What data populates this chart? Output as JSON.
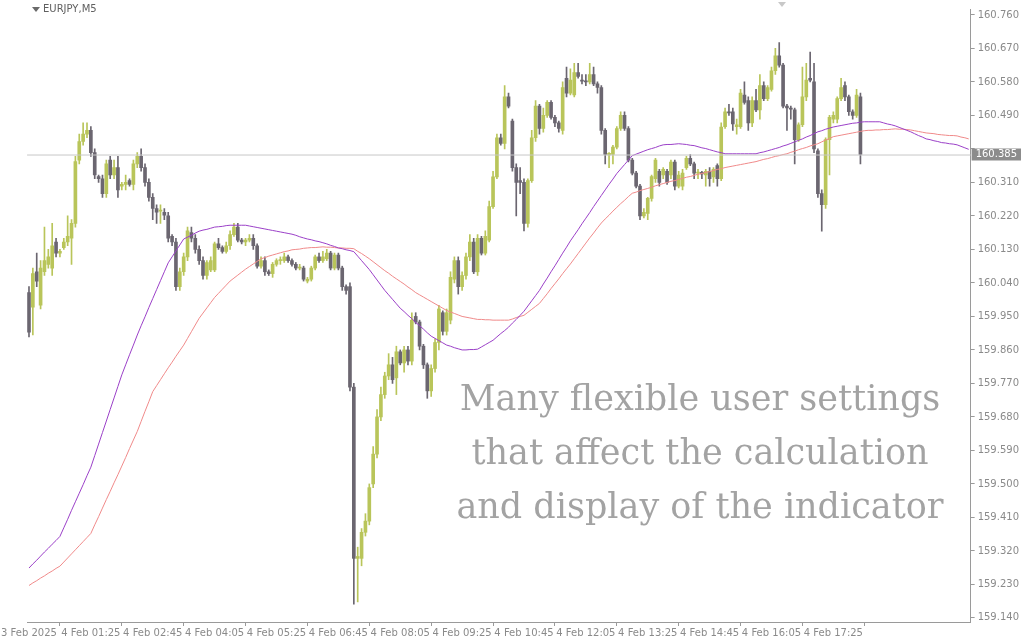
{
  "chart_data": {
    "type": "candlestick",
    "title": "EURJPY,M5",
    "annotations": [
      "Many flexible user settings that affect the calculation and display of the indicator"
    ],
    "categories": [
      "3 Feb 2025",
      null,
      null,
      null,
      null,
      null,
      null,
      null,
      null,
      null,
      null,
      null,
      null,
      null,
      null,
      null,
      "4 Feb 01:25",
      null,
      null,
      null,
      null,
      null,
      null,
      null,
      null,
      null,
      null,
      null,
      null,
      null,
      null,
      null,
      "4 Feb 02:45",
      null,
      null,
      null,
      null,
      null,
      null,
      null,
      null,
      null,
      null,
      null,
      null,
      null,
      null,
      null,
      "4 Feb 04:05",
      null,
      null,
      null,
      null,
      null,
      null,
      null,
      null,
      null,
      null,
      null,
      null,
      null,
      null,
      null,
      "4 Feb 05:25",
      null,
      null,
      null,
      null,
      null,
      null,
      null,
      null,
      null,
      null,
      null,
      null,
      null,
      null,
      null,
      "4 Feb 06:45",
      null,
      null,
      null,
      null,
      null,
      null,
      null,
      null,
      null,
      null,
      null,
      null,
      null,
      null,
      null,
      "4 Feb 08:05",
      null,
      null,
      null,
      null,
      null,
      null,
      null,
      null,
      null,
      null,
      null,
      null,
      null,
      null,
      null,
      "4 Feb 09:25",
      null,
      null,
      null,
      null,
      null,
      null,
      null,
      null,
      null,
      null,
      null,
      null,
      null,
      null,
      null,
      "4 Feb 10:45",
      null,
      null,
      null,
      null,
      null,
      null,
      null,
      null,
      null,
      null,
      null,
      null,
      null,
      null,
      null,
      "4 Feb 12:05",
      null,
      null,
      null,
      null,
      null,
      null,
      null,
      null,
      null,
      null,
      null,
      null,
      null,
      null,
      null,
      "4 Feb 13:25",
      null,
      null,
      null,
      null,
      null,
      null,
      null,
      null,
      null,
      null,
      null,
      null,
      null,
      null,
      null,
      "4 Feb 14:45",
      null,
      null,
      null,
      null,
      null,
      null,
      null,
      null,
      null,
      null,
      null,
      null,
      null,
      null,
      null,
      "4 Feb 16:05",
      null,
      null,
      null,
      null,
      null,
      null,
      null,
      null,
      null,
      null,
      null,
      null,
      null,
      null,
      null,
      "4 Feb 17:25",
      null,
      null,
      null,
      null,
      null,
      null,
      null,
      null,
      null,
      null,
      null,
      null,
      null,
      null,
      null,
      null,
      null,
      null,
      null,
      null,
      null,
      null,
      null,
      null,
      null,
      null,
      null,
      null,
      null,
      null,
      null,
      null,
      null,
      null,
      null
    ],
    "colors": [
      "#6b6670",
      "#b9c55a",
      "#6b6670",
      "#b9c55a",
      "#b9c55a",
      "#b9c55a",
      "#b9c55a",
      "#6b6670",
      "#b9c55a",
      "#b9c55a",
      "#b9c55a",
      "#b9c55a",
      "#b9c55a",
      "#b9c55a",
      "#b9c55a",
      "#b9c55a",
      "#6b6670",
      "#6b6670",
      "#6b6670",
      "#6b6670",
      "#b9c55a",
      "#6b6670",
      "#b9c55a",
      "#6b6670",
      "#b9c55a",
      "#b9c55a",
      "#6b6670",
      "#b9c55a",
      "#b9c55a",
      "#6b6670",
      "#6b6670",
      "#6b6670",
      "#6b6670",
      "#6b6670",
      "#b9c55a",
      "#6b6670",
      "#6b6670",
      "#6b6670",
      "#6b6670",
      "#b9c55a",
      "#b9c55a",
      "#b9c55a",
      "#6b6670",
      "#6b6670",
      "#6b6670",
      "#6b6670",
      "#b9c55a",
      "#b9c55a",
      "#b9c55a",
      "#6b6670",
      "#6b6670",
      "#b9c55a",
      "#b9c55a",
      "#b9c55a",
      "#6b6670",
      "#6b6670",
      "#b9c55a",
      "#b9c55a",
      "#6b6670",
      "#6b6670",
      "#b9c55a",
      "#6b6670",
      "#6b6670",
      "#b9c55a",
      "#b9c55a",
      "#b9c55a",
      "#b9c55a",
      "#6b6670",
      "#6b6670",
      "#6b6670",
      "#b9c55a",
      "#6b6670",
      "#b9c55a",
      "#b9c55a",
      "#b9c55a",
      "#6b6670",
      "#b9c55a",
      "#b9c55a",
      "#6b6670",
      "#b9c55a",
      "#6b6670",
      "#6b6670",
      "#6b6670",
      "#6b6670",
      "#6b6670",
      "#b9c55a",
      "#b9c55a",
      "#b9c55a",
      "#b9c55a",
      "#b9c55a",
      "#b9c55a",
      "#b9c55a",
      "#b9c55a",
      "#b9c55a",
      "#6b6670",
      "#b9c55a",
      "#6b6670",
      "#b9c55a",
      "#6b6670",
      "#b9c55a",
      "#6b6670",
      "#6b6670",
      "#6b6670",
      "#6b6670",
      "#b9c55a",
      "#b9c55a",
      "#b9c55a",
      "#6b6670",
      "#b9c55a",
      "#b9c55a",
      "#b9c55a",
      "#6b6670",
      "#b9c55a",
      "#b9c55a",
      "#b9c55a",
      "#6b6670",
      "#b9c55a",
      "#6b6670",
      "#b9c55a",
      "#b9c55a",
      "#b9c55a",
      "#b9c55a",
      "#6b6670",
      "#b9c55a",
      "#6b6670",
      "#6b6670",
      "#6b6670",
      "#6b6670",
      "#6b6670",
      "#b9c55a",
      "#b9c55a",
      "#b9c55a",
      "#6b6670",
      "#b9c55a",
      "#b9c55a",
      "#6b6670",
      "#6b6670",
      "#6b6670",
      "#b9c55a",
      "#6b6670",
      "#b9c55a",
      "#b9c55a",
      "#6b6670",
      "#6b6670",
      "#6b6670",
      "#b9c55a",
      "#6b6670",
      "#6b6670",
      "#6b6670",
      "#6b6670",
      "#b9c55a",
      "#b9c55a",
      "#b9c55a",
      "#b9c55a",
      "#6b6670",
      "#6b6670",
      "#6b6670",
      "#6b6670",
      "#6b6670",
      "#b9c55a",
      "#b9c55a",
      "#b9c55a",
      "#b9c55a",
      "#6b6670",
      "#b9c55a",
      "#6b6670",
      "#b9c55a",
      "#6b6670",
      "#b9c55a",
      "#b9c55a",
      "#b9c55a",
      "#6b6670",
      "#6b6670",
      "#b9c55a",
      "#6b6670",
      "#b9c55a",
      "#6b6670",
      "#b9c55a",
      "#6b6670",
      "#b9c55a",
      "#b9c55a",
      "#6b6670",
      "#6b6670",
      "#b9c55a",
      "#b9c55a",
      "#6b6670",
      "#6b6670",
      "#b9c55a",
      "#6b6670",
      "#b9c55a",
      "#6b6670",
      "#b9c55a",
      "#b9c55a",
      "#b9c55a",
      "#6b6670",
      "#6b6670",
      "#6b6670",
      "#6b6670",
      "#6b6670",
      "#b9c55a",
      "#b9c55a",
      "#b9c55a",
      "#6b6670",
      "#6b6670",
      "#6b6670",
      "#6b6670",
      "#b9c55a",
      "#b9c55a",
      "#b9c55a",
      "#b9c55a",
      "#b9c55a",
      "#6b6670",
      "#6b6670",
      "#6b6670",
      "#b9c55a",
      "#6b6670",
      null,
      null,
      null,
      null,
      null,
      null,
      null,
      null,
      null,
      null,
      null,
      null,
      null,
      null,
      null,
      null,
      null,
      null,
      null,
      null,
      null,
      null,
      null,
      null,
      null,
      null,
      null,
      null
    ],
    "ohlc": [
      [
        160.014,
        160.03,
        159.895,
        159.908
      ],
      [
        159.975,
        160.08,
        159.9,
        160.065
      ],
      [
        160.07,
        160.12,
        160.03,
        160.045
      ],
      [
        159.98,
        160.1,
        159.97,
        160.08
      ],
      [
        160.07,
        160.19,
        160.06,
        160.1
      ],
      [
        160.09,
        160.13,
        160.08,
        160.11
      ],
      [
        160.08,
        160.2,
        160.06,
        160.14
      ],
      [
        160.15,
        160.16,
        160.11,
        160.12
      ],
      [
        160.12,
        160.13,
        160.11,
        160.125
      ],
      [
        160.135,
        160.16,
        160.13,
        160.15
      ],
      [
        160.15,
        160.22,
        160.14,
        160.165
      ],
      [
        160.16,
        160.21,
        160.09,
        160.2
      ],
      [
        160.2,
        160.38,
        160.19,
        160.366
      ],
      [
        160.37,
        160.44,
        160.36,
        160.42
      ],
      [
        160.42,
        160.47,
        160.41,
        160.44
      ],
      [
        160.44,
        160.47,
        160.43,
        160.45
      ],
      [
        160.45,
        160.46,
        160.38,
        160.39
      ],
      [
        160.39,
        160.4,
        160.32,
        160.33
      ],
      [
        160.326,
        160.33,
        160.31,
        160.32
      ],
      [
        160.32,
        160.33,
        160.27,
        160.28
      ],
      [
        160.28,
        160.37,
        160.27,
        160.36
      ],
      [
        160.37,
        160.38,
        160.32,
        160.33
      ],
      [
        160.33,
        160.37,
        160.32,
        160.35
      ],
      [
        160.35,
        160.38,
        160.27,
        160.29
      ],
      [
        160.3,
        160.31,
        160.29,
        160.305
      ],
      [
        160.305,
        160.33,
        160.29,
        160.31
      ],
      [
        160.315,
        160.32,
        160.3,
        160.305
      ],
      [
        160.305,
        160.37,
        160.29,
        160.36
      ],
      [
        160.36,
        160.39,
        160.35,
        160.38
      ],
      [
        160.38,
        160.4,
        160.34,
        160.35
      ],
      [
        160.35,
        160.36,
        160.3,
        160.31
      ],
      [
        160.31,
        160.32,
        160.26,
        160.27
      ],
      [
        160.27,
        160.28,
        160.21,
        160.24
      ],
      [
        160.24,
        160.25,
        160.2,
        160.23
      ],
      [
        160.233,
        160.25,
        160.2,
        160.236
      ],
      [
        160.23,
        160.24,
        160.21,
        160.222
      ],
      [
        160.22,
        160.23,
        160.15,
        160.16
      ],
      [
        160.165,
        160.17,
        160.14,
        160.15
      ],
      [
        160.15,
        160.16,
        160.02,
        160.03
      ],
      [
        160.03,
        160.08,
        160.02,
        160.07
      ],
      [
        160.07,
        160.12,
        160.06,
        160.11
      ],
      [
        160.11,
        160.19,
        160.1,
        160.18
      ],
      [
        160.175,
        160.19,
        160.15,
        160.16
      ],
      [
        160.16,
        160.17,
        160.12,
        160.13
      ],
      [
        160.13,
        160.14,
        160.09,
        160.1
      ],
      [
        160.1,
        160.11,
        160.05,
        160.06
      ],
      [
        160.06,
        160.1,
        160.05,
        160.095
      ],
      [
        160.075,
        160.11,
        160.07,
        160.1
      ],
      [
        160.075,
        160.15,
        160.07,
        160.145
      ],
      [
        160.145,
        160.16,
        160.13,
        160.135
      ],
      [
        160.135,
        160.14,
        160.12,
        160.125
      ],
      [
        160.125,
        160.15,
        160.12,
        160.14
      ],
      [
        160.14,
        160.18,
        160.13,
        160.17
      ],
      [
        160.17,
        160.2,
        160.165,
        160.19
      ],
      [
        160.19,
        160.2,
        160.15,
        160.155
      ],
      [
        160.155,
        160.16,
        160.145,
        160.15
      ],
      [
        160.15,
        160.16,
        160.14,
        160.155
      ],
      [
        160.155,
        160.17,
        160.15,
        160.16
      ],
      [
        160.16,
        160.17,
        160.13,
        160.14
      ],
      [
        160.14,
        160.145,
        160.08,
        160.085
      ],
      [
        160.085,
        160.11,
        160.08,
        160.1
      ],
      [
        160.1,
        160.11,
        160.06,
        160.07
      ],
      [
        160.07,
        160.075,
        160.06,
        160.065
      ],
      [
        160.065,
        160.095,
        160.055,
        160.09
      ],
      [
        160.09,
        160.105,
        160.085,
        160.1
      ],
      [
        160.1,
        160.11,
        160.09,
        160.102
      ],
      [
        160.1,
        160.12,
        160.095,
        160.11
      ],
      [
        160.11,
        160.115,
        160.095,
        160.1
      ],
      [
        160.1,
        160.105,
        160.085,
        160.09
      ],
      [
        160.09,
        160.095,
        160.075,
        160.08
      ],
      [
        160.08,
        160.09,
        160.075,
        160.082
      ],
      [
        160.08,
        160.085,
        160.045,
        160.05
      ],
      [
        160.045,
        160.055,
        160.04,
        160.05
      ],
      [
        160.05,
        160.085,
        160.045,
        160.08
      ],
      [
        160.08,
        160.115,
        160.075,
        160.11
      ],
      [
        160.11,
        160.12,
        160.095,
        160.1
      ],
      [
        160.1,
        160.125,
        160.095,
        160.11
      ],
      [
        160.105,
        160.13,
        160.1,
        160.12
      ],
      [
        160.12,
        160.125,
        160.075,
        160.08
      ],
      [
        160.08,
        160.12,
        160.075,
        160.115
      ],
      [
        160.115,
        160.12,
        160.075,
        160.08
      ],
      [
        160.08,
        160.085,
        160.02,
        160.03
      ],
      [
        160.03,
        160.035,
        160.01,
        160.02
      ],
      [
        160.03,
        160.04,
        159.75,
        159.76
      ],
      [
        159.76,
        159.77,
        159.177,
        159.3
      ],
      [
        159.3,
        159.33,
        159.183,
        159.305
      ],
      [
        159.3,
        159.38,
        159.28,
        159.37
      ],
      [
        159.37,
        159.42,
        159.36,
        159.4
      ],
      [
        159.4,
        159.5,
        159.39,
        159.49
      ],
      [
        159.5,
        159.6,
        159.49,
        159.58
      ],
      [
        159.58,
        159.7,
        159.57,
        159.68
      ],
      [
        159.68,
        159.76,
        159.67,
        159.74
      ],
      [
        159.74,
        159.8,
        159.73,
        159.79
      ],
      [
        159.79,
        159.85,
        159.78,
        159.82
      ],
      [
        159.82,
        159.84,
        159.77,
        159.78
      ],
      [
        159.785,
        159.87,
        159.74,
        159.855
      ],
      [
        159.855,
        159.86,
        159.82,
        159.825
      ],
      [
        159.825,
        159.87,
        159.8,
        159.86
      ],
      [
        159.86,
        159.87,
        159.82,
        159.83
      ],
      [
        159.83,
        159.96,
        159.82,
        159.94
      ],
      [
        159.95,
        159.96,
        159.93,
        159.935
      ],
      [
        159.935,
        159.94,
        159.86,
        159.87
      ],
      [
        159.87,
        159.875,
        159.81,
        159.82
      ],
      [
        159.82,
        159.825,
        159.73,
        159.75
      ],
      [
        159.75,
        159.82,
        159.735,
        159.81
      ],
      [
        159.81,
        159.89,
        159.8,
        159.88
      ],
      [
        159.88,
        159.98,
        159.86,
        159.97
      ],
      [
        159.96,
        159.965,
        159.9,
        159.91
      ],
      [
        159.91,
        159.97,
        159.9,
        159.96
      ],
      [
        159.94,
        160.07,
        159.93,
        160.055
      ],
      [
        160.05,
        160.11,
        160.04,
        160.1
      ],
      [
        160.1,
        160.11,
        160.01,
        160.03
      ],
      [
        160.03,
        160.07,
        160.02,
        160.06
      ],
      [
        160.06,
        160.12,
        160.05,
        160.11
      ],
      [
        160.11,
        160.17,
        160.1,
        160.15
      ],
      [
        160.15,
        160.16,
        160.065,
        160.07
      ],
      [
        160.07,
        160.17,
        160.06,
        160.16
      ],
      [
        160.16,
        160.165,
        160.115,
        160.12
      ],
      [
        160.12,
        160.18,
        160.115,
        160.165
      ],
      [
        160.155,
        160.26,
        160.15,
        160.245
      ],
      [
        160.245,
        160.34,
        160.24,
        160.325
      ],
      [
        160.325,
        160.44,
        160.32,
        160.43
      ],
      [
        160.43,
        160.44,
        160.41,
        160.415
      ],
      [
        160.415,
        160.57,
        160.4,
        160.54
      ],
      [
        160.54,
        160.55,
        160.51,
        160.515
      ],
      [
        160.475,
        160.48,
        160.34,
        160.35
      ],
      [
        160.35,
        160.36,
        160.22,
        160.31
      ],
      [
        160.315,
        160.35,
        160.28,
        160.31
      ],
      [
        160.31,
        160.32,
        160.18,
        160.2
      ],
      [
        160.2,
        160.32,
        160.19,
        160.315
      ],
      [
        160.315,
        160.45,
        160.31,
        160.43
      ],
      [
        160.43,
        160.53,
        160.42,
        160.515
      ],
      [
        160.515,
        160.52,
        160.44,
        160.455
      ],
      [
        160.455,
        160.51,
        160.445,
        160.49
      ],
      [
        160.49,
        160.53,
        160.485,
        160.525
      ],
      [
        160.525,
        160.53,
        160.48,
        160.485
      ],
      [
        160.485,
        160.49,
        160.46,
        160.47
      ],
      [
        160.47,
        160.475,
        160.445,
        160.455
      ],
      [
        160.45,
        160.58,
        160.44,
        160.565
      ],
      [
        160.59,
        160.62,
        160.54,
        160.55
      ],
      [
        160.55,
        160.615,
        160.545,
        160.585
      ],
      [
        160.545,
        160.63,
        160.54,
        160.605
      ],
      [
        160.605,
        160.63,
        160.59,
        160.595
      ],
      [
        160.585,
        160.6,
        160.575,
        160.582
      ],
      [
        160.582,
        160.6,
        160.57,
        160.58
      ],
      [
        160.58,
        160.63,
        160.575,
        160.6
      ],
      [
        160.6,
        160.62,
        160.57,
        160.575
      ],
      [
        160.575,
        160.58,
        160.55,
        160.565
      ],
      [
        160.565,
        160.57,
        160.44,
        160.45
      ],
      [
        160.45,
        160.455,
        160.36,
        160.385
      ],
      [
        160.384,
        160.39,
        160.35,
        160.388
      ],
      [
        160.385,
        160.41,
        160.36,
        160.405
      ],
      [
        160.405,
        160.46,
        160.4,
        160.455
      ],
      [
        160.455,
        160.5,
        160.45,
        160.49
      ],
      [
        160.49,
        160.5,
        160.45,
        160.455
      ],
      [
        160.455,
        160.46,
        160.365,
        160.37
      ],
      [
        160.37,
        160.375,
        160.33,
        160.335
      ],
      [
        160.335,
        160.34,
        160.295,
        160.3
      ],
      [
        160.3,
        160.305,
        160.21,
        160.22
      ],
      [
        160.22,
        160.24,
        160.215,
        160.23
      ],
      [
        160.227,
        160.27,
        160.21,
        160.267
      ],
      [
        160.267,
        160.33,
        160.26,
        160.326
      ],
      [
        160.32,
        160.375,
        160.31,
        160.37
      ],
      [
        160.34,
        160.345,
        160.3,
        160.31
      ],
      [
        160.33,
        160.35,
        160.32,
        160.345
      ],
      [
        160.34,
        160.345,
        160.305,
        160.31
      ],
      [
        160.33,
        160.37,
        160.32,
        160.365
      ],
      [
        160.365,
        160.37,
        160.29,
        160.3
      ],
      [
        160.3,
        160.34,
        160.295,
        160.33
      ],
      [
        160.3,
        160.345,
        160.29,
        160.335
      ],
      [
        160.35,
        160.38,
        160.345,
        160.375
      ],
      [
        160.375,
        160.385,
        160.355,
        160.36
      ],
      [
        160.36,
        160.365,
        160.32,
        160.335
      ],
      [
        160.335,
        160.345,
        160.32,
        160.337
      ],
      [
        160.337,
        160.34,
        160.32,
        160.333
      ],
      [
        160.33,
        160.345,
        160.3,
        160.34
      ],
      [
        160.34,
        160.35,
        160.3,
        160.32
      ],
      [
        160.325,
        160.35,
        160.31,
        160.345
      ],
      [
        160.355,
        160.36,
        160.3,
        160.32
      ],
      [
        160.32,
        160.47,
        160.315,
        160.459
      ],
      [
        160.46,
        160.51,
        160.455,
        160.5
      ],
      [
        160.5,
        160.52,
        160.49,
        160.497
      ],
      [
        160.5,
        160.51,
        160.45,
        160.467
      ],
      [
        160.46,
        160.48,
        160.44,
        160.465
      ],
      [
        160.46,
        160.56,
        160.455,
        160.55
      ],
      [
        160.545,
        160.58,
        160.52,
        160.525
      ],
      [
        160.53,
        160.54,
        160.45,
        160.47
      ],
      [
        160.47,
        160.54,
        160.46,
        160.53
      ],
      [
        160.53,
        160.56,
        160.5,
        160.505
      ],
      [
        160.505,
        160.6,
        160.48,
        160.57
      ],
      [
        160.57,
        160.58,
        160.53,
        160.535
      ],
      [
        160.535,
        160.57,
        160.53,
        160.565
      ],
      [
        160.56,
        160.62,
        160.555,
        160.61
      ],
      [
        160.61,
        160.67,
        160.6,
        160.65
      ],
      [
        160.65,
        160.686,
        160.62,
        160.625
      ],
      [
        160.625,
        160.63,
        160.51,
        160.515
      ],
      [
        160.515,
        160.52,
        160.45,
        160.51
      ],
      [
        160.51,
        160.515,
        160.48,
        160.507
      ],
      [
        160.505,
        160.51,
        160.36,
        160.425
      ],
      [
        160.425,
        160.47,
        160.42,
        160.465
      ],
      [
        160.465,
        160.62,
        160.46,
        160.54
      ],
      [
        160.54,
        160.63,
        160.53,
        160.585
      ],
      [
        160.59,
        160.66,
        160.58,
        160.585
      ],
      [
        160.58,
        160.63,
        160.39,
        160.4
      ],
      [
        160.395,
        160.4,
        160.27,
        160.28
      ],
      [
        160.28,
        160.29,
        160.179,
        160.25
      ],
      [
        160.25,
        160.43,
        160.24,
        160.425
      ],
      [
        160.425,
        160.49,
        160.33,
        160.485
      ],
      [
        160.48,
        160.5,
        160.47,
        160.49
      ],
      [
        160.48,
        160.54,
        160.47,
        160.535
      ],
      [
        160.535,
        160.59,
        160.53,
        160.565
      ],
      [
        160.57,
        160.58,
        160.53,
        160.54
      ],
      [
        160.54,
        160.545,
        160.49,
        160.5
      ],
      [
        160.5,
        160.505,
        160.48,
        160.49
      ],
      [
        160.49,
        160.56,
        160.485,
        160.545
      ],
      [
        160.54,
        160.55,
        160.36,
        160.385
      ],
      null,
      null,
      null,
      null,
      null,
      null,
      null,
      null,
      null,
      null,
      null,
      null,
      null,
      null,
      null,
      null,
      null,
      null,
      null,
      null,
      null,
      null,
      null,
      null,
      null,
      null,
      null,
      null
    ],
    "series": [
      {
        "type": "line",
        "color": "#9b40c8",
        "values": [
          159.274,
          159.285,
          159.295,
          159.306,
          159.317,
          159.327,
          159.338,
          159.348,
          159.359,
          159.382,
          159.405,
          159.429,
          159.452,
          159.475,
          159.498,
          159.522,
          159.545,
          159.576,
          159.607,
          159.638,
          159.669,
          159.7,
          159.731,
          159.762,
          159.793,
          159.82,
          159.847,
          159.873,
          159.9,
          159.925,
          159.949,
          159.974,
          159.998,
          160.022,
          160.046,
          160.07,
          160.094,
          160.11,
          160.126,
          160.142,
          160.158,
          160.163,
          160.168,
          160.174,
          160.179,
          160.182,
          160.184,
          160.187,
          160.19,
          160.191,
          160.192,
          160.194,
          160.195,
          160.195,
          160.195,
          160.195,
          160.195,
          160.193,
          160.191,
          160.189,
          160.187,
          160.185,
          160.183,
          160.181,
          160.179,
          160.177,
          160.175,
          160.173,
          160.171,
          160.168,
          160.164,
          160.161,
          160.158,
          160.156,
          160.153,
          160.151,
          160.148,
          160.145,
          160.141,
          160.138,
          160.134,
          160.132,
          160.129,
          160.127,
          160.124,
          160.112,
          160.1,
          160.088,
          160.076,
          160.062,
          160.048,
          160.034,
          160.02,
          160.008,
          159.996,
          159.984,
          159.972,
          159.963,
          159.953,
          159.944,
          159.934,
          159.925,
          159.916,
          159.906,
          159.897,
          159.891,
          159.885,
          159.879,
          159.873,
          159.87,
          159.866,
          159.863,
          159.86,
          159.86,
          159.861,
          159.861,
          159.862,
          159.868,
          159.874,
          159.88,
          159.886,
          159.895,
          159.904,
          159.912,
          159.921,
          159.932,
          159.942,
          159.953,
          159.964,
          159.978,
          159.992,
          160.006,
          160.02,
          160.037,
          160.053,
          160.07,
          160.086,
          160.103,
          160.12,
          160.136,
          160.153,
          160.168,
          160.183,
          160.199,
          160.214,
          160.229,
          160.245,
          160.26,
          160.275,
          160.29,
          160.305,
          160.319,
          160.334,
          160.346,
          160.358,
          160.37,
          160.382,
          160.386,
          160.39,
          160.394,
          160.398,
          160.401,
          160.404,
          160.408,
          160.411,
          160.412,
          160.412,
          160.413,
          160.414,
          160.413,
          160.412,
          160.41,
          160.409,
          160.406,
          160.403,
          160.401,
          160.398,
          160.395,
          160.392,
          160.39,
          160.387,
          160.387,
          160.387,
          160.387,
          160.387,
          160.387,
          160.387,
          160.387,
          160.387,
          160.39,
          160.392,
          160.395,
          160.398,
          160.401,
          160.404,
          160.408,
          160.411,
          160.415,
          160.419,
          160.423,
          160.427,
          160.432,
          160.436,
          160.441,
          160.446,
          160.449,
          160.453,
          160.456,
          160.459,
          160.461,
          160.463,
          160.465,
          160.467,
          160.469,
          160.47,
          160.472,
          160.473,
          160.473,
          160.473,
          160.473,
          160.473,
          160.47,
          160.467,
          160.465,
          160.462,
          160.458,
          160.454,
          160.45,
          160.446,
          160.441,
          160.436,
          160.432,
          160.427,
          160.425,
          160.422,
          160.42,
          160.417,
          160.416,
          160.414,
          160.413,
          160.411,
          160.407,
          160.403,
          160.399
        ]
      },
      {
        "type": "line",
        "color": "#f08a8a",
        "values": [
          159.227,
          159.234,
          159.24,
          159.247,
          159.253,
          159.26,
          159.266,
          159.273,
          159.279,
          159.29,
          159.301,
          159.312,
          159.323,
          159.334,
          159.345,
          159.356,
          159.367,
          159.39,
          159.412,
          159.435,
          159.458,
          159.48,
          159.503,
          159.525,
          159.548,
          159.571,
          159.595,
          159.618,
          159.641,
          159.668,
          159.695,
          159.721,
          159.748,
          159.764,
          159.78,
          159.796,
          159.812,
          159.827,
          159.843,
          159.858,
          159.873,
          159.891,
          159.909,
          159.927,
          159.945,
          159.959,
          159.973,
          159.987,
          160.001,
          160.012,
          160.023,
          160.034,
          160.045,
          160.053,
          160.061,
          160.069,
          160.077,
          160.084,
          160.091,
          160.098,
          160.105,
          160.108,
          160.112,
          160.115,
          160.118,
          160.121,
          160.124,
          160.126,
          160.129,
          160.13,
          160.131,
          160.133,
          160.134,
          160.135,
          160.135,
          160.136,
          160.137,
          160.136,
          160.136,
          160.135,
          160.134,
          160.134,
          160.133,
          160.133,
          160.132,
          160.125,
          160.119,
          160.112,
          160.105,
          160.097,
          160.089,
          160.081,
          160.073,
          160.066,
          160.058,
          160.051,
          160.044,
          160.037,
          160.029,
          160.022,
          160.014,
          160.008,
          160.002,
          159.996,
          159.99,
          159.984,
          159.978,
          159.972,
          159.966,
          159.962,
          159.958,
          159.954,
          159.95,
          159.948,
          159.946,
          159.944,
          159.942,
          159.942,
          159.941,
          159.941,
          159.94,
          159.94,
          159.94,
          159.94,
          159.94,
          159.943,
          159.947,
          159.95,
          159.953,
          159.961,
          159.969,
          159.977,
          159.985,
          159.998,
          160.011,
          160.025,
          160.038,
          160.051,
          160.065,
          160.078,
          160.091,
          160.105,
          160.119,
          160.133,
          160.147,
          160.161,
          160.174,
          160.188,
          160.201,
          160.212,
          160.222,
          160.233,
          160.243,
          160.253,
          160.262,
          160.272,
          160.281,
          160.284,
          160.288,
          160.291,
          160.294,
          160.297,
          160.301,
          160.304,
          160.307,
          160.31,
          160.313,
          160.315,
          160.318,
          160.321,
          160.324,
          160.326,
          160.329,
          160.332,
          160.334,
          160.337,
          160.339,
          160.342,
          160.345,
          160.347,
          160.35,
          160.352,
          160.354,
          160.356,
          160.358,
          160.36,
          160.362,
          160.364,
          160.366,
          160.369,
          160.372,
          160.374,
          160.377,
          160.38,
          160.382,
          160.385,
          160.387,
          160.391,
          160.394,
          160.398,
          160.401,
          160.404,
          160.408,
          160.411,
          160.414,
          160.419,
          160.424,
          160.428,
          160.433,
          160.435,
          160.437,
          160.439,
          160.441,
          160.443,
          160.445,
          160.447,
          160.449,
          160.45,
          160.45,
          160.451,
          160.451,
          160.452,
          160.452,
          160.453,
          160.454,
          160.453,
          160.453,
          160.452,
          160.451,
          160.449,
          160.447,
          160.445,
          160.443,
          160.442,
          160.441,
          160.439,
          160.438,
          160.437,
          160.436,
          160.436,
          160.435,
          160.432,
          160.43,
          160.427
        ]
      }
    ],
    "ylim": [
      159.129,
      160.776
    ],
    "yticks": [
      {
        "value": 159.14,
        "label": "159.140"
      },
      {
        "value": 159.23,
        "label": "159.230"
      },
      {
        "value": 159.32,
        "label": "159.320"
      },
      {
        "value": 159.41,
        "label": "159.410"
      },
      {
        "value": 159.5,
        "label": "159.500"
      },
      {
        "value": 159.59,
        "label": "159.590"
      },
      {
        "value": 159.68,
        "label": "159.680"
      },
      {
        "value": 159.77,
        "label": "159.770"
      },
      {
        "value": 159.86,
        "label": "159.860"
      },
      {
        "value": 159.95,
        "label": "159.950"
      },
      {
        "value": 160.04,
        "label": "160.040"
      },
      {
        "value": 160.13,
        "label": "160.130"
      },
      {
        "value": 160.22,
        "label": "160.220"
      },
      {
        "value": 160.31,
        "label": "160.310"
      },
      {
        "value": 160.4,
        "label": null
      },
      {
        "value": 160.49,
        "label": "160.490"
      },
      {
        "value": 160.58,
        "label": "160.580"
      },
      {
        "value": 160.67,
        "label": "160.670"
      },
      {
        "value": 160.76,
        "label": "160.760"
      }
    ],
    "ref_lines": [
      {
        "axis": "y",
        "value": 160.385,
        "label": "160.385",
        "color": "#c8c8c8"
      }
    ]
  }
}
